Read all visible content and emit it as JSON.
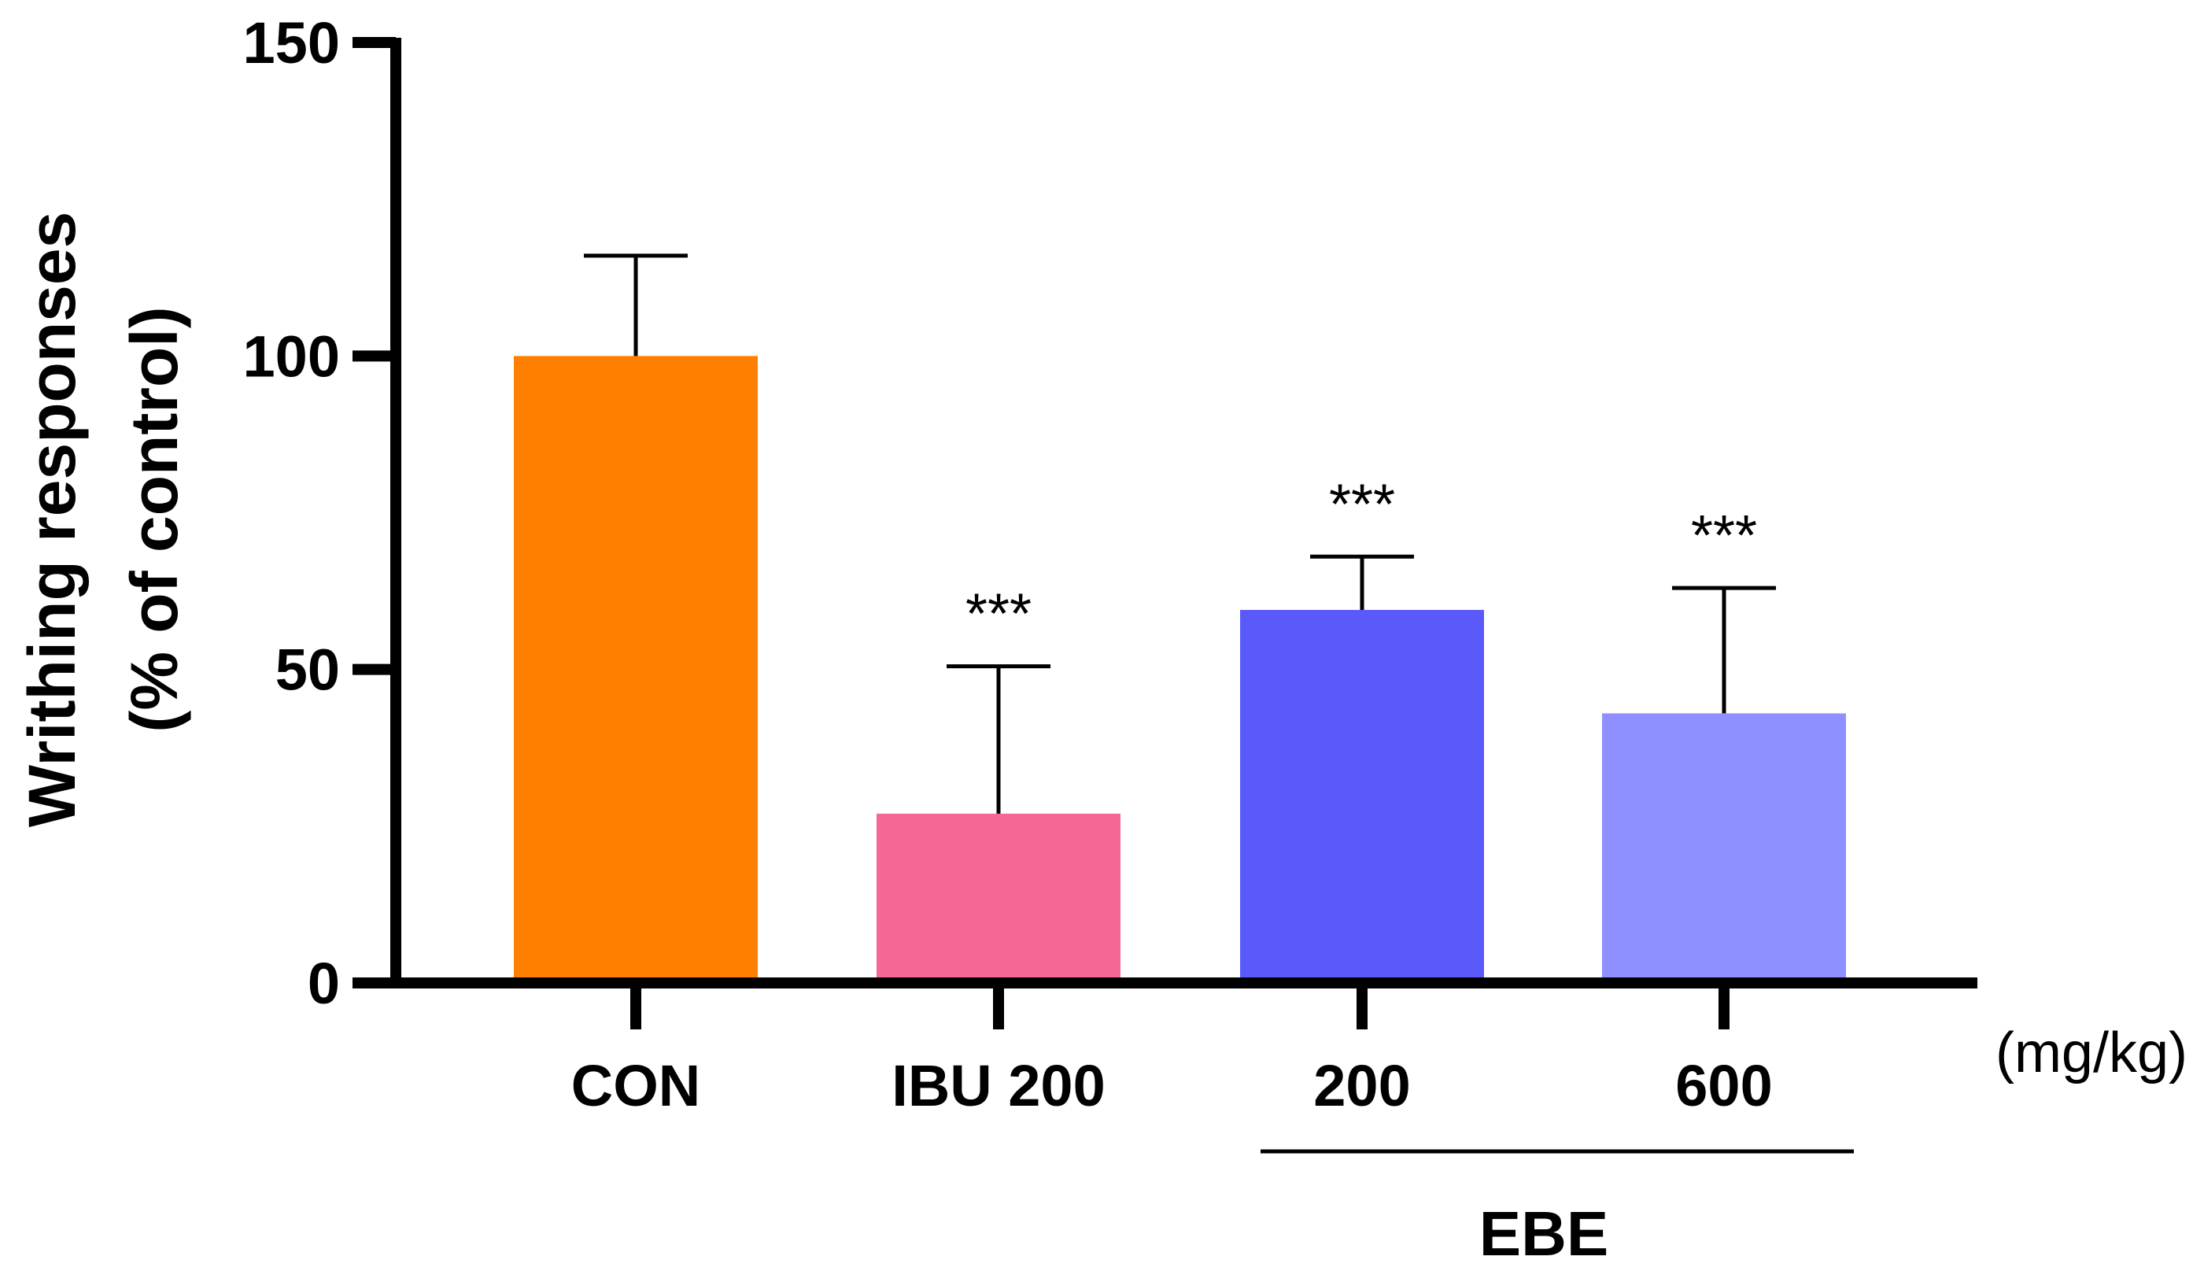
{
  "chart_data": {
    "type": "bar",
    "categories": [
      "CON",
      "IBU 200",
      "200",
      "600"
    ],
    "values": [
      100,
      27,
      59.5,
      43
    ],
    "errors": [
      16,
      23.5,
      8.5,
      20
    ],
    "colors": [
      "#FF8000",
      "#F76793",
      "#5A5AFA",
      "#8F8FFF"
    ],
    "significance": [
      "",
      "***",
      "***",
      "***"
    ],
    "ylabel_line1": "Writhing responses",
    "ylabel_line2": "(% of control)",
    "ylim": [
      0,
      150
    ],
    "yticks": [
      "0",
      "50",
      "100",
      "150"
    ],
    "unit_label": "(mg/kg)",
    "group_label": "EBE",
    "group_members": [
      "200",
      "600"
    ]
  }
}
